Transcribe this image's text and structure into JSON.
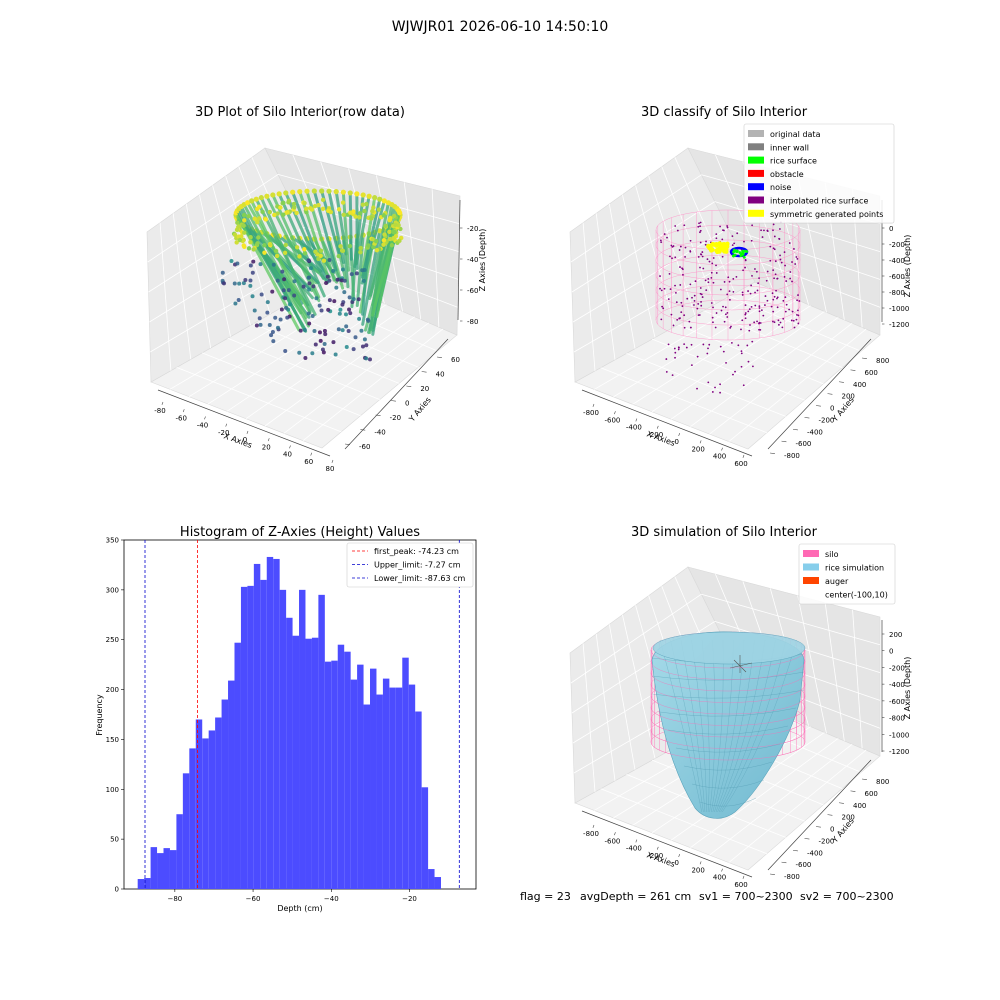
{
  "figure": {
    "suptitle": "WJWJR01 2026-06-10 14:50:10",
    "info": {
      "flag": "flag = 23",
      "avg_depth": "avgDepth = 261 cm",
      "sv1": "sv1 = 700~2300",
      "sv2": "sv2 = 700~2300"
    }
  },
  "chart_data": [
    {
      "type": "scatter",
      "projection": "3d",
      "title": "3D Plot of Silo Interior(row data)",
      "xlabel": "X Axies",
      "ylabel": "Y Axies",
      "zlabel": "Z Axies (Depth)",
      "xticks": [
        -80,
        -60,
        -40,
        -20,
        0,
        20,
        40,
        60,
        80
      ],
      "yticks": [
        -60,
        -40,
        -20,
        0,
        20,
        40,
        60
      ],
      "zticks": [
        -80,
        -60,
        -40,
        -20
      ],
      "xlim": [
        -90,
        85
      ],
      "ylim": [
        -70,
        65
      ],
      "zlim": [
        -95,
        -5
      ],
      "colormap": "viridis",
      "grid": true
    },
    {
      "type": "scatter",
      "projection": "3d",
      "title": "3D classify of Silo Interior",
      "xlabel": "X Axies",
      "ylabel": "Y Axies",
      "zlabel": "Z Axies (Depth)",
      "xticks": [
        -800,
        -600,
        -400,
        -200,
        0,
        200,
        400,
        600
      ],
      "yticks": [
        -800,
        -600,
        -400,
        -200,
        0,
        200,
        400,
        600,
        800
      ],
      "zticks": [
        -1200,
        -1000,
        -800,
        -600,
        -400,
        -200,
        0
      ],
      "legend_position": "top-right",
      "legend": [
        {
          "label": "original data",
          "color": "#b3b3b3"
        },
        {
          "label": "inner wall",
          "color": "#808080"
        },
        {
          "label": "rice surface",
          "color": "#00ff00"
        },
        {
          "label": "obstacle",
          "color": "#ff0000"
        },
        {
          "label": "noise",
          "color": "#0000ff"
        },
        {
          "label": "interpolated rice surface",
          "color": "#800080"
        },
        {
          "label": "symmetric generated points",
          "color": "#ffff00"
        }
      ],
      "grid": true
    },
    {
      "type": "bar",
      "title": "Histogram of Z-Axies (Height) Values",
      "xlabel": "Depth (cm)",
      "ylabel": "Frequency",
      "xlim": [
        -93,
        -3
      ],
      "ylim": [
        0,
        350
      ],
      "xticks": [
        -80,
        -60,
        -40,
        -20
      ],
      "yticks": [
        0,
        50,
        100,
        150,
        200,
        250,
        300,
        350
      ],
      "bar_color": "#4c4cff",
      "bin_start": -89.5,
      "bin_width": 1.65,
      "values": [
        10,
        11,
        42,
        36,
        41,
        39,
        75,
        116,
        141,
        170,
        151,
        159,
        172,
        190,
        209,
        247,
        303,
        304,
        326,
        310,
        333,
        331,
        300,
        272,
        254,
        300,
        251,
        252,
        295,
        228,
        229,
        245,
        238,
        210,
        225,
        185,
        221,
        195,
        211,
        202,
        202,
        232,
        205,
        178,
        102,
        20,
        12
      ],
      "lines": [
        {
          "label": "first_peak: -74.23 cm",
          "x": -74.23,
          "color": "#ff0000"
        },
        {
          "label": "Upper_limit: -7.27 cm",
          "x": -7.27,
          "color": "#0000cc"
        },
        {
          "label": "Lower_limit: -87.63 cm",
          "x": -87.63,
          "color": "#0000cc"
        }
      ],
      "legend_position": "top-right"
    },
    {
      "type": "area",
      "projection": "3d",
      "title": "3D simulation of Silo Interior",
      "xlabel": "X Axies",
      "ylabel": "Y Axies",
      "zlabel": "Z Axies (Depth)",
      "xticks": [
        -800,
        -600,
        -400,
        -200,
        0,
        200,
        400,
        600
      ],
      "yticks": [
        -800,
        -600,
        -400,
        -200,
        0,
        200,
        400,
        600,
        800
      ],
      "zticks": [
        -1200,
        -1000,
        -800,
        -600,
        -400,
        -200,
        0,
        200
      ],
      "legend_position": "top-right",
      "legend": [
        {
          "label": "silo",
          "color": "#ff69b4"
        },
        {
          "label": "rice simulation",
          "color": "#87ceeb"
        },
        {
          "label": "auger",
          "color": "#ff4500"
        },
        {
          "label": "center(-100,10)",
          "color": "none"
        }
      ],
      "grid": true
    }
  ]
}
